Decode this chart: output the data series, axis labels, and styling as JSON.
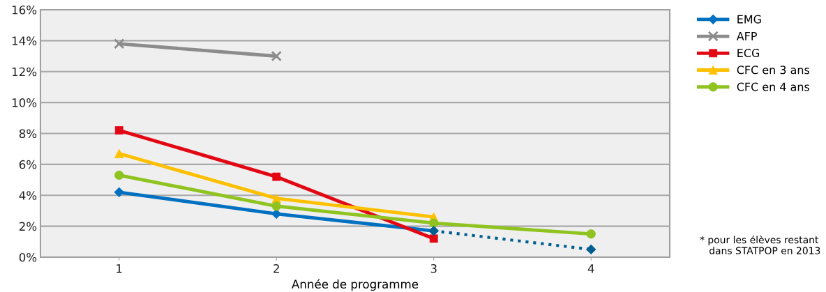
{
  "chart_data": {
    "type": "line",
    "xlabel": "Année de programme",
    "x": [
      1,
      2,
      3,
      4
    ],
    "series": [
      {
        "name": "EMG",
        "color": "#0070c0",
        "marker": "diamond",
        "line_style": "solid",
        "values": [
          4.2,
          2.8,
          1.7,
          null
        ]
      },
      {
        "name": "AFP",
        "color": "#8c8c8c",
        "marker": "cross",
        "line_style": "solid",
        "values": [
          13.8,
          13.0,
          null,
          null
        ]
      },
      {
        "name": "ECG",
        "color": "#e30613",
        "marker": "square",
        "line_style": "solid",
        "values": [
          8.2,
          5.2,
          1.2,
          null
        ]
      },
      {
        "name": "CFC en 3 ans",
        "color": "#ffc000",
        "marker": "triangle",
        "line_style": "solid",
        "values": [
          6.7,
          3.8,
          2.6,
          null
        ]
      },
      {
        "name": "CFC en 4 ans",
        "color": "#8fc31f",
        "marker": "circle",
        "line_style": "solid",
        "values": [
          5.3,
          3.3,
          2.2,
          1.5
        ]
      },
      {
        "color": "#005f8f",
        "marker": "diamond",
        "line_style": "dotted",
        "values": [
          null,
          null,
          1.7,
          0.5
        ]
      }
    ],
    "xlim": [
      0.5,
      4.5
    ],
    "xticks": [
      1,
      2,
      3,
      4
    ],
    "ylim": [
      0,
      16
    ],
    "yticks": [
      {
        "value": 0,
        "label": "0%"
      },
      {
        "value": 2,
        "label": "2%"
      },
      {
        "value": 4,
        "label": "4%"
      },
      {
        "value": 6,
        "label": "6%"
      },
      {
        "value": 8,
        "label": "8%"
      },
      {
        "value": 10,
        "label": "10%"
      },
      {
        "value": 12,
        "label": "12%"
      },
      {
        "value": 14,
        "label": "14%"
      },
      {
        "value": 16,
        "label": "16%"
      }
    ],
    "grid": "y",
    "legend": "top right",
    "annotations": [
      "* pour les élèves restant\n   dans STATPOP en 2013"
    ]
  }
}
